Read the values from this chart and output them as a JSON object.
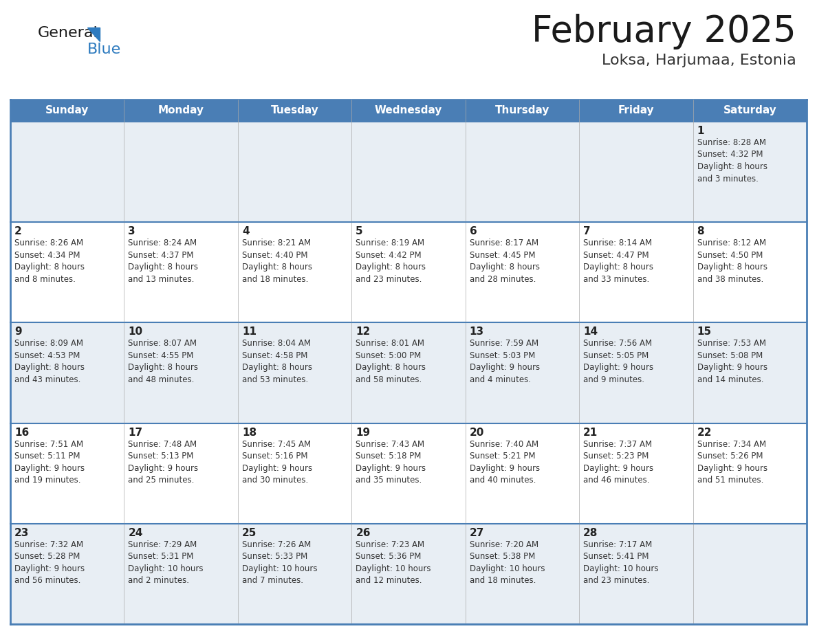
{
  "title": "February 2025",
  "subtitle": "Loksa, Harjumaa, Estonia",
  "header_bg": "#4a7eb5",
  "header_text": "#ffffff",
  "odd_row_bg": "#e8eef4",
  "even_row_bg": "#ffffff",
  "border_color": "#4a7eb5",
  "grid_line_color": "#4a7eb5",
  "text_color": "#333333",
  "day_number_color": "#222222",
  "logo_text_color": "#1a1a1a",
  "logo_blue_color": "#2e7bbf",
  "weekdays": [
    "Sunday",
    "Monday",
    "Tuesday",
    "Wednesday",
    "Thursday",
    "Friday",
    "Saturday"
  ],
  "weeks": [
    [
      {
        "day": "",
        "info": ""
      },
      {
        "day": "",
        "info": ""
      },
      {
        "day": "",
        "info": ""
      },
      {
        "day": "",
        "info": ""
      },
      {
        "day": "",
        "info": ""
      },
      {
        "day": "",
        "info": ""
      },
      {
        "day": "1",
        "info": "Sunrise: 8:28 AM\nSunset: 4:32 PM\nDaylight: 8 hours\nand 3 minutes."
      }
    ],
    [
      {
        "day": "2",
        "info": "Sunrise: 8:26 AM\nSunset: 4:34 PM\nDaylight: 8 hours\nand 8 minutes."
      },
      {
        "day": "3",
        "info": "Sunrise: 8:24 AM\nSunset: 4:37 PM\nDaylight: 8 hours\nand 13 minutes."
      },
      {
        "day": "4",
        "info": "Sunrise: 8:21 AM\nSunset: 4:40 PM\nDaylight: 8 hours\nand 18 minutes."
      },
      {
        "day": "5",
        "info": "Sunrise: 8:19 AM\nSunset: 4:42 PM\nDaylight: 8 hours\nand 23 minutes."
      },
      {
        "day": "6",
        "info": "Sunrise: 8:17 AM\nSunset: 4:45 PM\nDaylight: 8 hours\nand 28 minutes."
      },
      {
        "day": "7",
        "info": "Sunrise: 8:14 AM\nSunset: 4:47 PM\nDaylight: 8 hours\nand 33 minutes."
      },
      {
        "day": "8",
        "info": "Sunrise: 8:12 AM\nSunset: 4:50 PM\nDaylight: 8 hours\nand 38 minutes."
      }
    ],
    [
      {
        "day": "9",
        "info": "Sunrise: 8:09 AM\nSunset: 4:53 PM\nDaylight: 8 hours\nand 43 minutes."
      },
      {
        "day": "10",
        "info": "Sunrise: 8:07 AM\nSunset: 4:55 PM\nDaylight: 8 hours\nand 48 minutes."
      },
      {
        "day": "11",
        "info": "Sunrise: 8:04 AM\nSunset: 4:58 PM\nDaylight: 8 hours\nand 53 minutes."
      },
      {
        "day": "12",
        "info": "Sunrise: 8:01 AM\nSunset: 5:00 PM\nDaylight: 8 hours\nand 58 minutes."
      },
      {
        "day": "13",
        "info": "Sunrise: 7:59 AM\nSunset: 5:03 PM\nDaylight: 9 hours\nand 4 minutes."
      },
      {
        "day": "14",
        "info": "Sunrise: 7:56 AM\nSunset: 5:05 PM\nDaylight: 9 hours\nand 9 minutes."
      },
      {
        "day": "15",
        "info": "Sunrise: 7:53 AM\nSunset: 5:08 PM\nDaylight: 9 hours\nand 14 minutes."
      }
    ],
    [
      {
        "day": "16",
        "info": "Sunrise: 7:51 AM\nSunset: 5:11 PM\nDaylight: 9 hours\nand 19 minutes."
      },
      {
        "day": "17",
        "info": "Sunrise: 7:48 AM\nSunset: 5:13 PM\nDaylight: 9 hours\nand 25 minutes."
      },
      {
        "day": "18",
        "info": "Sunrise: 7:45 AM\nSunset: 5:16 PM\nDaylight: 9 hours\nand 30 minutes."
      },
      {
        "day": "19",
        "info": "Sunrise: 7:43 AM\nSunset: 5:18 PM\nDaylight: 9 hours\nand 35 minutes."
      },
      {
        "day": "20",
        "info": "Sunrise: 7:40 AM\nSunset: 5:21 PM\nDaylight: 9 hours\nand 40 minutes."
      },
      {
        "day": "21",
        "info": "Sunrise: 7:37 AM\nSunset: 5:23 PM\nDaylight: 9 hours\nand 46 minutes."
      },
      {
        "day": "22",
        "info": "Sunrise: 7:34 AM\nSunset: 5:26 PM\nDaylight: 9 hours\nand 51 minutes."
      }
    ],
    [
      {
        "day": "23",
        "info": "Sunrise: 7:32 AM\nSunset: 5:28 PM\nDaylight: 9 hours\nand 56 minutes."
      },
      {
        "day": "24",
        "info": "Sunrise: 7:29 AM\nSunset: 5:31 PM\nDaylight: 10 hours\nand 2 minutes."
      },
      {
        "day": "25",
        "info": "Sunrise: 7:26 AM\nSunset: 5:33 PM\nDaylight: 10 hours\nand 7 minutes."
      },
      {
        "day": "26",
        "info": "Sunrise: 7:23 AM\nSunset: 5:36 PM\nDaylight: 10 hours\nand 12 minutes."
      },
      {
        "day": "27",
        "info": "Sunrise: 7:20 AM\nSunset: 5:38 PM\nDaylight: 10 hours\nand 18 minutes."
      },
      {
        "day": "28",
        "info": "Sunrise: 7:17 AM\nSunset: 5:41 PM\nDaylight: 10 hours\nand 23 minutes."
      },
      {
        "day": "",
        "info": ""
      }
    ]
  ]
}
